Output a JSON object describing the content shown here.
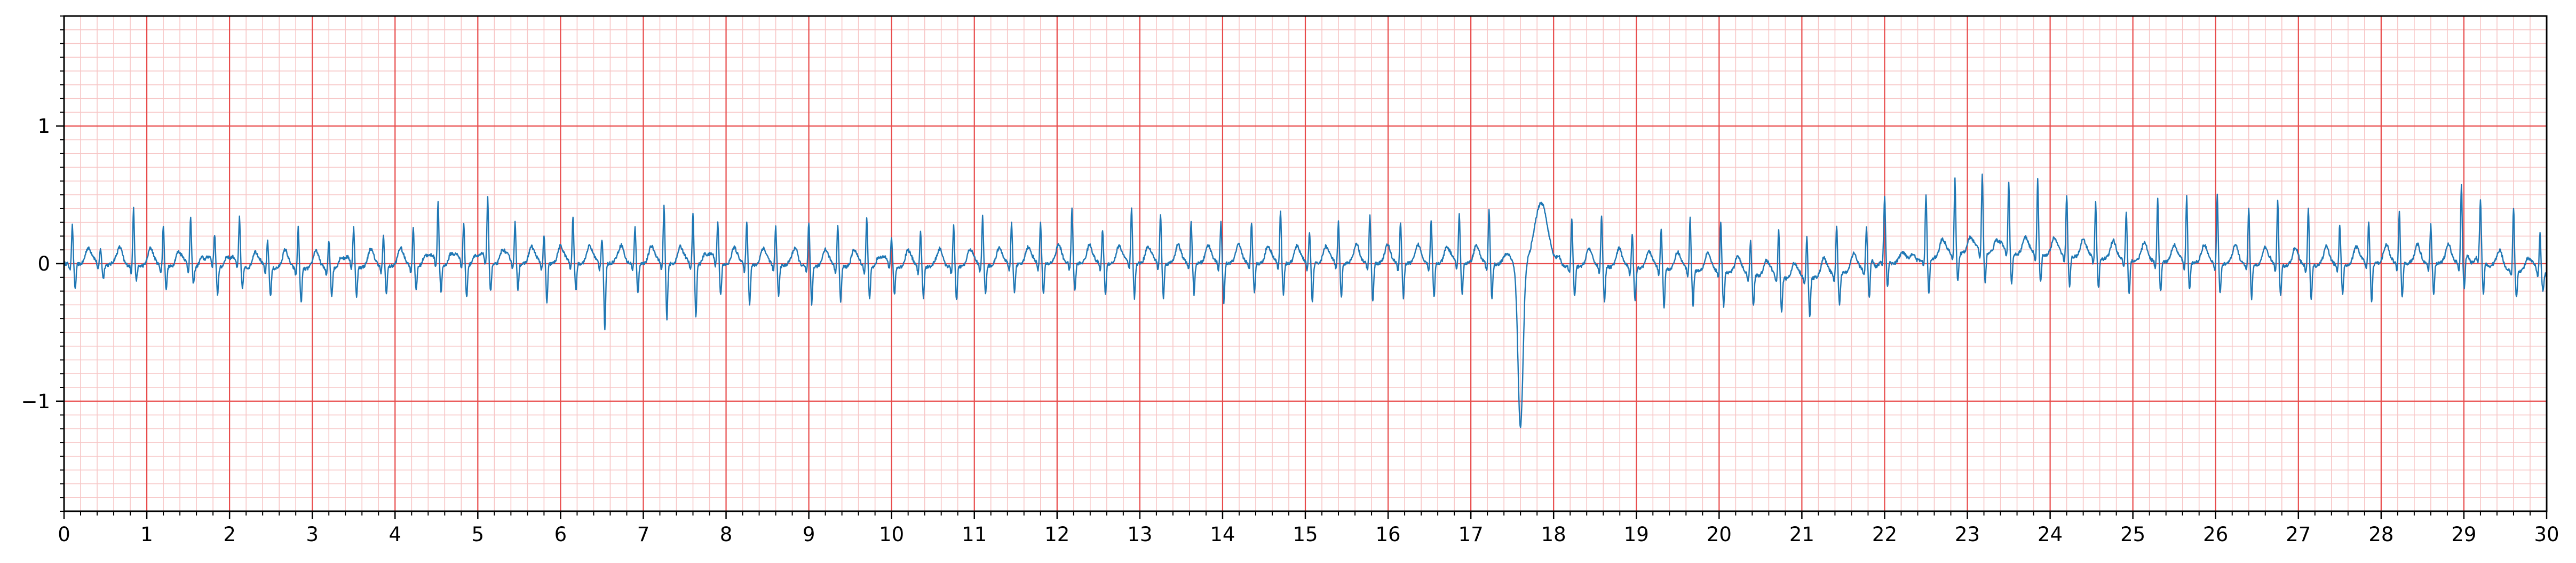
{
  "chart_data": {
    "type": "line",
    "title": "",
    "xlabel": "",
    "ylabel": "",
    "xlim": [
      0,
      30
    ],
    "ylim": [
      -1.8,
      1.8
    ],
    "x_ticks": [
      0,
      1,
      2,
      3,
      4,
      5,
      6,
      7,
      8,
      9,
      10,
      11,
      12,
      13,
      14,
      15,
      16,
      17,
      18,
      19,
      20,
      21,
      22,
      23,
      24,
      25,
      26,
      27,
      28,
      29,
      30
    ],
    "x_tick_labels": [
      "0",
      "1",
      "2",
      "3",
      "4",
      "5",
      "6",
      "7",
      "8",
      "9",
      "10",
      "11",
      "12",
      "13",
      "14",
      "15",
      "16",
      "17",
      "18",
      "19",
      "20",
      "21",
      "22",
      "23",
      "24",
      "25",
      "26",
      "27",
      "28",
      "29",
      "30"
    ],
    "y_ticks": [
      -1,
      0,
      1
    ],
    "y_tick_labels": [
      "−1",
      "0",
      "1"
    ],
    "grid": {
      "major": true,
      "minor": true,
      "major_x_step": 1,
      "major_y_step": 1,
      "minor_x_step": 0.2,
      "minor_y_step": 0.1,
      "major_color": "#e84b4b",
      "minor_color": "#f7c6c6"
    },
    "line_color": "#1f77b4",
    "series": [
      {
        "sample_rate": 25,
        "beat_times": [
          0.1,
          0.44,
          0.84,
          1.2,
          1.53,
          1.82,
          2.12,
          2.46,
          2.83,
          3.2,
          3.5,
          3.86,
          4.22,
          4.52,
          4.83,
          5.12,
          5.45,
          5.8,
          6.15,
          6.5,
          6.9,
          7.25,
          7.6,
          7.9,
          8.25,
          8.6,
          9.0,
          9.35,
          9.7,
          10.0,
          10.35,
          10.75,
          11.1,
          11.45,
          11.8,
          12.18,
          12.55,
          12.9,
          13.25,
          13.62,
          13.98,
          14.35,
          14.7,
          15.05,
          15.4,
          15.78,
          16.15,
          16.52,
          16.86,
          17.22,
          17.6,
          18.22,
          18.58,
          18.95,
          19.3,
          19.65,
          20.02,
          20.38,
          20.72,
          21.06,
          21.42,
          21.78,
          22.0,
          22.5,
          22.85,
          23.18,
          23.5,
          23.85,
          24.2,
          24.55,
          24.92,
          25.3,
          25.65,
          26.02,
          26.4,
          26.75,
          27.12,
          27.5,
          27.85,
          28.22,
          28.6,
          28.97,
          29.2,
          29.6,
          29.92
        ],
        "r_amplitudes": [
          0.28,
          0.12,
          0.42,
          0.3,
          0.36,
          0.22,
          0.35,
          0.2,
          0.3,
          0.2,
          0.28,
          0.22,
          0.28,
          0.44,
          0.3,
          0.46,
          0.3,
          0.2,
          0.34,
          0.18,
          0.26,
          0.42,
          0.36,
          0.3,
          0.32,
          0.28,
          0.32,
          0.3,
          0.36,
          0.2,
          0.25,
          0.3,
          0.36,
          0.3,
          0.3,
          0.4,
          0.25,
          0.4,
          0.36,
          0.3,
          0.3,
          0.3,
          0.38,
          0.22,
          0.3,
          0.36,
          0.3,
          0.32,
          0.36,
          0.4,
          0.42,
          0.35,
          0.38,
          0.25,
          0.3,
          0.38,
          0.36,
          0.25,
          0.35,
          0.3,
          0.36,
          0.3,
          0.44,
          0.48,
          0.55,
          0.58,
          0.52,
          0.55,
          0.45,
          0.4,
          0.35,
          0.45,
          0.48,
          0.5,
          0.42,
          0.48,
          0.42,
          0.3,
          0.3,
          0.38,
          0.28,
          0.58,
          0.4,
          0.46,
          0.28
        ],
        "s_amplitudes": [
          -0.18,
          -0.1,
          -0.1,
          -0.16,
          -0.12,
          -0.2,
          -0.15,
          -0.2,
          -0.25,
          -0.2,
          -0.22,
          -0.2,
          -0.18,
          -0.2,
          -0.24,
          -0.2,
          -0.18,
          -0.28,
          -0.2,
          -0.48,
          -0.22,
          -0.4,
          -0.38,
          -0.22,
          -0.28,
          -0.22,
          -0.28,
          -0.25,
          -0.22,
          -0.2,
          -0.22,
          -0.25,
          -0.2,
          -0.2,
          -0.22,
          -0.2,
          -0.22,
          -0.25,
          -0.25,
          -0.22,
          -0.28,
          -0.2,
          -0.22,
          -0.28,
          -0.25,
          -0.28,
          -0.25,
          -0.25,
          -0.22,
          -0.25,
          -1.18,
          -0.22,
          -0.25,
          -0.25,
          -0.28,
          -0.25,
          -0.25,
          -0.22,
          -0.25,
          -0.28,
          -0.22,
          -0.25,
          -0.22,
          -0.25,
          -0.2,
          -0.22,
          -0.22,
          -0.2,
          -0.22,
          -0.22,
          -0.25,
          -0.22,
          -0.2,
          -0.22,
          -0.25,
          -0.22,
          -0.25,
          -0.22,
          -0.28,
          -0.25,
          -0.22,
          -0.2,
          -0.25,
          -0.2,
          -0.12
        ],
        "baseline": [
          [
            0,
            0.0
          ],
          [
            1,
            -0.02
          ],
          [
            2,
            -0.03
          ],
          [
            3,
            -0.04
          ],
          [
            4,
            -0.02
          ],
          [
            5,
            -0.01
          ],
          [
            6,
            0.0
          ],
          [
            7,
            0.0
          ],
          [
            8,
            -0.01
          ],
          [
            9,
            -0.02
          ],
          [
            10,
            -0.03
          ],
          [
            11,
            -0.02
          ],
          [
            12,
            0.0
          ],
          [
            13,
            0.0
          ],
          [
            14,
            0.0
          ],
          [
            15,
            0.0
          ],
          [
            16,
            0.0
          ],
          [
            17,
            0.0
          ],
          [
            18,
            -0.02
          ],
          [
            19,
            -0.03
          ],
          [
            20,
            -0.06
          ],
          [
            21,
            -0.12
          ],
          [
            22,
            -0.02
          ],
          [
            23,
            0.08
          ],
          [
            24,
            0.06
          ],
          [
            25,
            0.02
          ],
          [
            26,
            0.0
          ],
          [
            27,
            -0.02
          ],
          [
            28,
            0.0
          ],
          [
            29,
            0.0
          ],
          [
            30,
            -0.08
          ]
        ],
        "wide_complex": {
          "t": 17.6,
          "min": -1.18,
          "max": 0.46
        }
      }
    ]
  }
}
